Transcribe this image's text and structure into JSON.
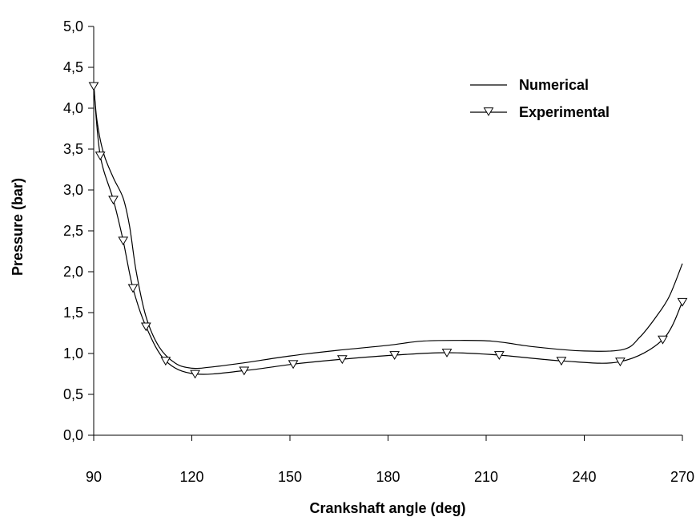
{
  "chart_data": {
    "type": "line",
    "xlabel": "Crankshaft angle (deg)",
    "ylabel": "Pressure (bar)",
    "xlim": [
      90,
      270
    ],
    "ylim": [
      0,
      5
    ],
    "xticks": [
      90,
      120,
      150,
      180,
      210,
      240,
      270
    ],
    "yticks": [
      "0,0",
      "0,5",
      "1,0",
      "1,5",
      "2,0",
      "2,5",
      "3,0",
      "3,5",
      "4,0",
      "4,5",
      "5,0"
    ],
    "legend_position": "top-right",
    "grid": false,
    "series": [
      {
        "name": "Numerical",
        "marker": "none",
        "x": [
          90,
          91,
          93,
          96,
          99,
          101,
          103,
          106,
          110,
          115,
          120,
          125,
          135,
          150,
          165,
          180,
          190,
          200,
          212,
          225,
          240,
          252,
          257,
          262,
          266,
          270
        ],
        "y": [
          4.3,
          3.85,
          3.45,
          3.15,
          2.9,
          2.55,
          2.0,
          1.45,
          1.08,
          0.88,
          0.82,
          0.83,
          0.88,
          0.97,
          1.04,
          1.1,
          1.15,
          1.16,
          1.15,
          1.08,
          1.03,
          1.05,
          1.2,
          1.45,
          1.7,
          2.1
        ]
      },
      {
        "name": "Experimental",
        "marker": "triangle-down",
        "x": [
          90,
          92,
          96,
          99,
          102,
          106,
          112,
          121,
          136,
          151,
          166,
          182,
          198,
          214,
          233,
          251,
          264,
          270
        ],
        "y": [
          4.27,
          3.42,
          2.88,
          2.38,
          1.8,
          1.33,
          0.91,
          0.75,
          0.79,
          0.87,
          0.93,
          0.98,
          1.01,
          0.98,
          0.91,
          0.9,
          1.17,
          1.63
        ]
      }
    ]
  }
}
